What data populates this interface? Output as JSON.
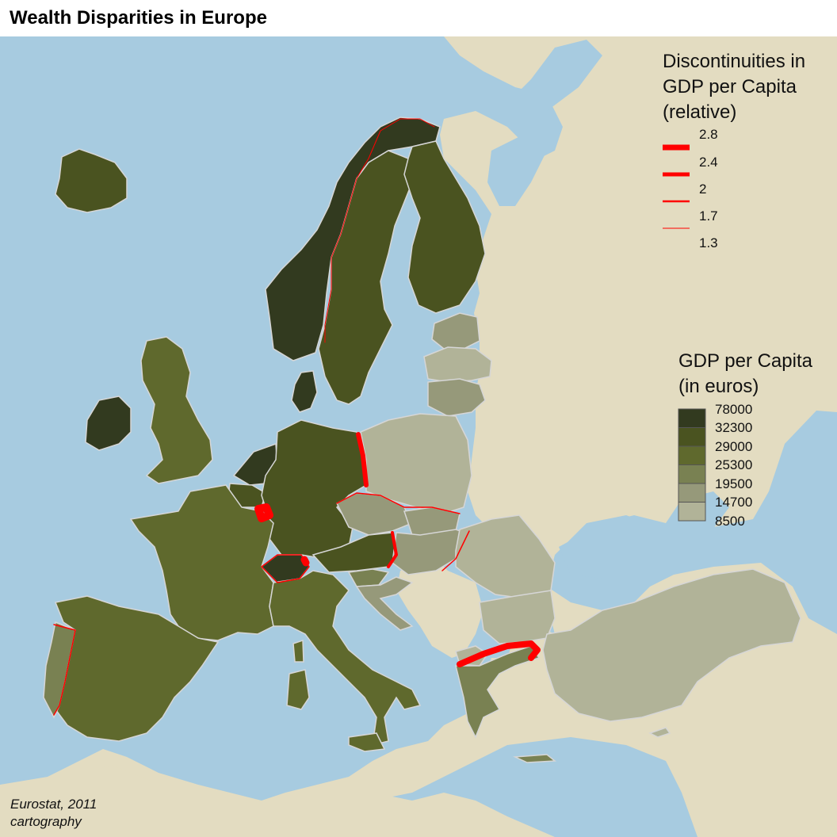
{
  "title": "Wealth Disparities in Europe",
  "colors": {
    "sea": "#a7cbe0",
    "land_non_data": "#e3dcc1",
    "border": "#d6d6d6",
    "discontinuity": "#ff0000"
  },
  "legend_discontinuity": {
    "title_lines": [
      "Discontinuities in",
      "GDP per Capita",
      "(relative)"
    ],
    "breaks": [
      "2.8",
      "2.4",
      "2",
      "1.7",
      "1.3"
    ]
  },
  "legend_gdp": {
    "title_lines": [
      "GDP per Capita",
      "(in euros)"
    ],
    "breaks": [
      "78000",
      "32300",
      "29000",
      "25300",
      "19500",
      "14700",
      "8500"
    ],
    "class_colors": [
      "#323a1f",
      "#4a5320",
      "#5f692d",
      "#798152",
      "#96997a",
      "#b1b398"
    ]
  },
  "source_lines": [
    "Eurostat, 2011",
    "cartography"
  ]
}
